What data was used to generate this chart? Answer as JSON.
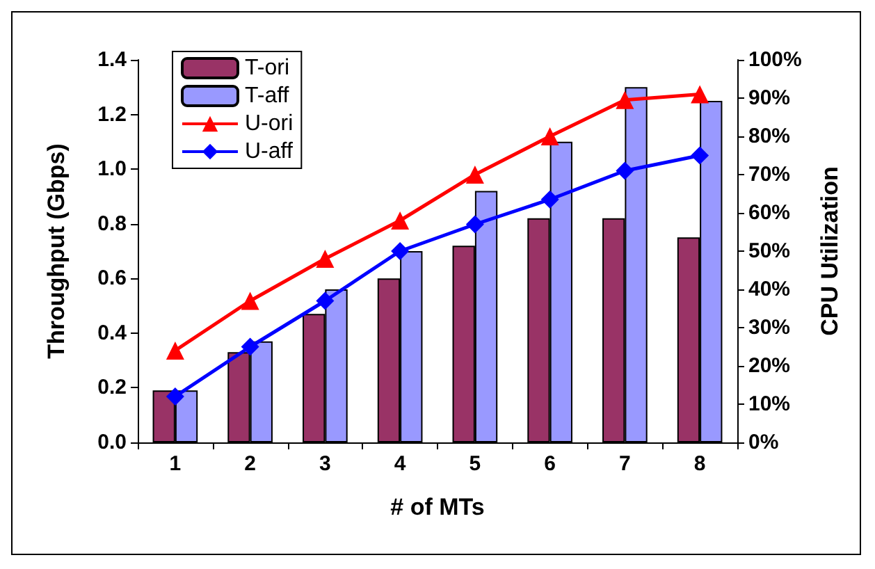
{
  "chart_data": {
    "type": "bar",
    "xlabel": "# of MTs",
    "ylabel": "Throughput (Gbps)",
    "y2label": "CPU Utilization",
    "categories": [
      "1",
      "2",
      "3",
      "4",
      "5",
      "6",
      "7",
      "8"
    ],
    "series": [
      {
        "name": "T-ori",
        "color": "#993366",
        "values": [
          0.19,
          0.33,
          0.47,
          0.6,
          0.72,
          0.82,
          0.82,
          0.75
        ]
      },
      {
        "name": "T-aff",
        "color": "#9999ff",
        "values": [
          0.19,
          0.37,
          0.56,
          0.7,
          0.92,
          1.1,
          1.3,
          1.25
        ]
      },
      {
        "name": "U-ori",
        "type": "line",
        "axis": "y2",
        "color": "#ff0000",
        "marker": "triangle",
        "values": [
          24,
          37,
          48,
          58,
          70,
          80,
          89.5,
          91
        ]
      },
      {
        "name": "U-aff",
        "type": "line",
        "axis": "y2",
        "color": "#0000ff",
        "marker": "diamond",
        "values": [
          12,
          25,
          37,
          50,
          57,
          63.5,
          71,
          75
        ]
      }
    ],
    "ylim": [
      0,
      1.4
    ],
    "yticks": [
      {
        "value": 0,
        "label": "0.0"
      },
      {
        "value": 0.2,
        "label": "0.2"
      },
      {
        "value": 0.4,
        "label": "0.4"
      },
      {
        "value": 0.6,
        "label": "0.6"
      },
      {
        "value": 0.8,
        "label": "0.8"
      },
      {
        "value": 1,
        "label": "1.0"
      },
      {
        "value": 1.2,
        "label": "1.2"
      },
      {
        "value": 1.4,
        "label": "1.4"
      }
    ],
    "y2lim": [
      0,
      100
    ],
    "y2ticks": [
      {
        "value": 0,
        "label": "0%"
      },
      {
        "value": 10,
        "label": "10%"
      },
      {
        "value": 20,
        "label": "20%"
      },
      {
        "value": 30,
        "label": "30%"
      },
      {
        "value": 40,
        "label": "40%"
      },
      {
        "value": 50,
        "label": "50%"
      },
      {
        "value": 60,
        "label": "60%"
      },
      {
        "value": 70,
        "label": "70%"
      },
      {
        "value": 80,
        "label": "80%"
      },
      {
        "value": 90,
        "label": "90%"
      },
      {
        "value": 100,
        "label": "100%"
      }
    ],
    "grid": false,
    "legend": "top left"
  }
}
